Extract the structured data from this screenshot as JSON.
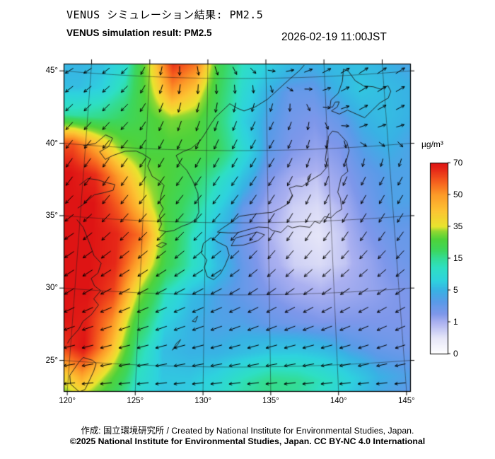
{
  "header": {
    "title_jp": "VENUS シミュレーション結果: PM2.5",
    "title_en": "VENUS simulation result: PM2.5",
    "datetime": "2026-02-19 11:00JST"
  },
  "colorbar": {
    "unit": "µg/m³",
    "tick_labels": [
      "70",
      "50",
      "35",
      "15",
      "5",
      "1",
      "0"
    ],
    "tick_values": [
      70,
      50,
      35,
      15,
      5,
      1,
      0
    ]
  },
  "map_axes": {
    "lat_labels": [
      "45°",
      "40°",
      "35°",
      "30°",
      "25°"
    ],
    "lat_values": [
      45,
      40,
      35,
      30,
      25
    ],
    "lon_labels": [
      "120°",
      "125°",
      "130°",
      "135°",
      "140°",
      "145°"
    ],
    "lon_values": [
      120,
      125,
      130,
      135,
      140,
      145
    ]
  },
  "footer": {
    "credit": "作成: 国立環境研究所 / Created by National Institute for Environmental Studies, Japan.",
    "license": "©2025 National Institute for Environmental Studies, Japan. CC BY-NC 4.0 International"
  },
  "chart_data": {
    "type": "heatmap",
    "title": "VENUS simulation result: PM2.5",
    "variable": "PM2.5",
    "unit": "µg/m³",
    "datetime": "2026-02-19 11:00JST",
    "extent": {
      "lon": [
        119.7,
        146.6
      ],
      "lat": [
        22.9,
        45.8
      ]
    },
    "colorbar_ticks": [
      0,
      1,
      5,
      15,
      35,
      50,
      70
    ],
    "colormap": [
      [
        0,
        "#ffffff"
      ],
      [
        0.5,
        "#e6e6f8"
      ],
      [
        1,
        "#aab0f0"
      ],
      [
        2,
        "#7e97ea"
      ],
      [
        3.5,
        "#5b9ae8"
      ],
      [
        5,
        "#38b2e4"
      ],
      [
        8,
        "#2ed2de"
      ],
      [
        12,
        "#2edfc4"
      ],
      [
        15,
        "#33dc96"
      ],
      [
        20,
        "#3cd65e"
      ],
      [
        27,
        "#4fd23a"
      ],
      [
        32,
        "#8fd832"
      ],
      [
        35,
        "#e8e42e"
      ],
      [
        42,
        "#fcc633"
      ],
      [
        50,
        "#fc9a28"
      ],
      [
        58,
        "#f6601e"
      ],
      [
        66,
        "#e62818"
      ],
      [
        70,
        "#de1414"
      ]
    ],
    "lon": [
      119,
      121,
      123,
      125,
      127,
      129,
      131,
      133,
      135,
      137,
      139,
      141,
      143,
      145,
      147
    ],
    "lat": [
      46,
      44,
      42,
      40,
      38,
      36,
      34,
      32,
      30,
      28,
      26,
      24,
      22
    ],
    "values": [
      [
        5,
        6,
        10,
        35,
        65,
        55,
        22,
        12,
        8,
        6,
        5,
        6,
        6,
        5,
        4
      ],
      [
        6,
        8,
        14,
        30,
        50,
        40,
        20,
        10,
        5,
        3,
        3,
        5,
        7,
        6,
        5
      ],
      [
        14,
        16,
        20,
        25,
        30,
        28,
        18,
        8,
        4,
        2.5,
        2,
        3,
        5,
        6,
        5
      ],
      [
        60,
        45,
        30,
        25,
        26,
        26,
        20,
        10,
        3.5,
        2,
        1.5,
        2,
        4,
        5,
        4
      ],
      [
        70,
        65,
        48,
        32,
        26,
        20,
        12,
        6,
        2,
        1,
        0.8,
        1.5,
        3,
        4,
        4
      ],
      [
        70,
        70,
        58,
        40,
        24,
        16,
        8,
        3,
        1.2,
        0.7,
        0.6,
        1,
        2.5,
        4,
        4
      ],
      [
        70,
        70,
        66,
        55,
        25,
        12,
        5,
        2.5,
        1,
        0.6,
        0.5,
        0.8,
        2,
        3,
        3
      ],
      [
        70,
        70,
        66,
        45,
        22,
        12,
        6,
        3,
        1.2,
        0.7,
        0.6,
        0.8,
        1.5,
        2.5,
        3
      ],
      [
        70,
        70,
        62,
        32,
        12,
        6,
        4,
        3,
        2,
        1.2,
        1,
        1.2,
        1.5,
        2,
        2.5
      ],
      [
        70,
        68,
        52,
        22,
        8,
        5,
        4,
        4,
        3,
        2.5,
        2,
        2,
        2,
        2,
        2
      ],
      [
        62,
        70,
        45,
        15,
        6,
        5,
        5,
        6,
        7,
        7,
        6,
        4,
        3,
        2.5,
        2
      ],
      [
        35,
        48,
        30,
        12,
        7,
        7,
        9,
        13,
        16,
        15,
        12,
        8,
        5,
        4,
        3
      ],
      [
        22,
        28,
        18,
        9,
        6,
        8,
        11,
        15,
        16,
        14,
        10,
        6,
        4,
        3,
        3
      ]
    ],
    "wind": {
      "lon": [
        119,
        123,
        127,
        131,
        135,
        139,
        143,
        147
      ],
      "lat": [
        46,
        42,
        38,
        34,
        30,
        26,
        22
      ],
      "u": [
        [
          -2,
          -1,
          0,
          1,
          1,
          2,
          3,
          3
        ],
        [
          -2,
          -2,
          -1,
          -1,
          -1,
          0,
          2,
          2
        ],
        [
          -2,
          -2,
          -2,
          -2,
          -2,
          -1,
          -1,
          -1
        ],
        [
          -3,
          -3,
          -3,
          -3,
          -2,
          -2,
          -2,
          -2
        ],
        [
          -3,
          -4,
          -4,
          -4,
          -3,
          -3,
          -3,
          -3
        ],
        [
          -4,
          -4,
          -4,
          -4,
          -4,
          -4,
          -3,
          -3
        ],
        [
          -4,
          -4,
          -4,
          -4,
          -4,
          -4,
          -4,
          -4
        ]
      ],
      "v": [
        [
          -1,
          -1,
          -2,
          -2,
          0,
          1,
          2,
          2
        ],
        [
          -2,
          -2,
          -3,
          -3,
          -2,
          -1,
          1,
          1
        ],
        [
          -3,
          -3,
          -3,
          -3,
          -3,
          -3,
          -2,
          -2
        ],
        [
          -2,
          -3,
          -3,
          -3,
          -3,
          -3,
          -3,
          -3
        ],
        [
          -2,
          -2,
          -2,
          -2,
          -2,
          -2,
          -2,
          -2
        ],
        [
          -1,
          -1,
          -1,
          -1,
          -1,
          -1,
          -1,
          -1
        ],
        [
          0,
          0,
          0,
          0,
          0,
          0,
          0,
          0
        ]
      ]
    }
  },
  "coastlines": [
    [
      [
        138.3,
        45.85
      ],
      [
        137.9,
        45.5
      ],
      [
        137.0,
        44.9
      ],
      [
        136.0,
        44.2
      ],
      [
        135.1,
        43.55
      ],
      [
        134.1,
        43.05
      ],
      [
        133.1,
        42.75
      ],
      [
        132.5,
        42.95
      ],
      [
        131.9,
        43.25
      ],
      [
        131.2,
        42.7
      ],
      [
        130.7,
        42.3
      ],
      [
        130.3,
        41.8
      ],
      [
        129.8,
        41.1
      ],
      [
        129.4,
        40.6
      ],
      [
        128.7,
        40.1
      ],
      [
        128.1,
        39.9
      ],
      [
        127.5,
        39.6
      ],
      [
        127.8,
        39.1
      ],
      [
        128.4,
        38.6
      ],
      [
        128.9,
        37.9
      ],
      [
        129.35,
        37.0
      ],
      [
        129.4,
        36.3
      ],
      [
        129.45,
        35.7
      ],
      [
        129.2,
        35.2
      ],
      [
        128.7,
        34.9
      ],
      [
        128.1,
        34.7
      ],
      [
        127.5,
        34.4
      ],
      [
        126.9,
        34.3
      ],
      [
        126.3,
        34.4
      ],
      [
        126.5,
        34.8
      ],
      [
        126.3,
        35.4
      ],
      [
        126.6,
        35.9
      ],
      [
        126.3,
        36.3
      ],
      [
        126.4,
        36.9
      ],
      [
        126.6,
        37.5
      ],
      [
        126.2,
        37.8
      ],
      [
        125.6,
        38.1
      ],
      [
        125.2,
        38.8
      ],
      [
        125.4,
        39.3
      ],
      [
        124.8,
        39.6
      ],
      [
        124.2,
        39.8
      ],
      [
        123.3,
        39.75
      ],
      [
        122.3,
        39.4
      ],
      [
        121.7,
        39.1
      ],
      [
        121.2,
        39.6
      ],
      [
        121.9,
        40.0
      ],
      [
        122.2,
        40.6
      ],
      [
        121.6,
        40.8
      ],
      [
        120.8,
        40.15
      ],
      [
        119.8,
        39.95
      ]
    ],
    [
      [
        119.75,
        37.2
      ],
      [
        120.4,
        37.7
      ],
      [
        121.2,
        37.65
      ],
      [
        121.9,
        37.5
      ],
      [
        122.6,
        37.4
      ],
      [
        122.5,
        37.0
      ],
      [
        121.8,
        36.8
      ],
      [
        121.0,
        36.6
      ],
      [
        120.4,
        36.1
      ],
      [
        120.2,
        35.9
      ],
      [
        119.75,
        35.6
      ]
    ],
    [
      [
        119.75,
        34.8
      ],
      [
        120.3,
        34.3
      ],
      [
        120.9,
        33.2
      ],
      [
        121.3,
        32.4
      ],
      [
        121.9,
        31.9
      ],
      [
        121.7,
        31.2
      ],
      [
        121.2,
        30.8
      ],
      [
        121.5,
        30.3
      ],
      [
        122.0,
        30.0
      ],
      [
        121.5,
        29.4
      ],
      [
        121.9,
        29.0
      ],
      [
        121.4,
        28.3
      ],
      [
        120.8,
        27.8
      ],
      [
        120.5,
        27.2
      ],
      [
        119.9,
        26.5
      ],
      [
        119.75,
        26.2
      ]
    ],
    [
      [
        121.0,
        25.3
      ],
      [
        121.7,
        25.15
      ],
      [
        122.0,
        24.95
      ],
      [
        121.85,
        24.4
      ],
      [
        121.6,
        23.8
      ],
      [
        121.3,
        23.1
      ],
      [
        120.9,
        22.9
      ],
      [
        120.2,
        23.4
      ],
      [
        120.1,
        24.0
      ],
      [
        120.7,
        24.95
      ],
      [
        121.0,
        25.3
      ]
    ],
    [
      [
        130.2,
        31.25
      ],
      [
        130.7,
        31.05
      ],
      [
        131.2,
        31.45
      ],
      [
        131.55,
        32.0
      ],
      [
        131.9,
        32.75
      ],
      [
        131.7,
        33.35
      ],
      [
        131.0,
        33.65
      ],
      [
        130.45,
        33.95
      ],
      [
        129.85,
        33.55
      ],
      [
        129.7,
        32.9
      ],
      [
        130.15,
        32.4
      ],
      [
        129.95,
        31.9
      ],
      [
        130.2,
        31.25
      ]
    ],
    [
      [
        132.05,
        33.4
      ],
      [
        133.0,
        33.45
      ],
      [
        134.15,
        33.75
      ],
      [
        134.7,
        34.15
      ],
      [
        134.1,
        34.35
      ],
      [
        133.1,
        34.1
      ],
      [
        132.4,
        33.95
      ],
      [
        132.05,
        33.4
      ]
    ],
    [
      [
        130.95,
        34.35
      ],
      [
        131.8,
        34.3
      ],
      [
        132.5,
        34.3
      ],
      [
        133.3,
        34.5
      ],
      [
        134.2,
        34.7
      ],
      [
        135.0,
        34.65
      ],
      [
        135.3,
        34.45
      ],
      [
        136.0,
        34.3
      ],
      [
        136.55,
        34.75
      ],
      [
        136.9,
        34.6
      ],
      [
        137.5,
        34.7
      ],
      [
        138.3,
        34.6
      ],
      [
        138.7,
        35.0
      ],
      [
        139.1,
        34.85
      ],
      [
        139.5,
        35.3
      ],
      [
        140.0,
        35.2
      ],
      [
        140.45,
        35.55
      ],
      [
        140.9,
        35.75
      ],
      [
        140.85,
        36.5
      ],
      [
        140.65,
        36.95
      ],
      [
        141.0,
        38.0
      ],
      [
        141.55,
        38.35
      ],
      [
        141.45,
        39.0
      ],
      [
        141.75,
        39.8
      ],
      [
        141.6,
        40.4
      ],
      [
        141.2,
        40.8
      ],
      [
        140.9,
        41.1
      ],
      [
        140.45,
        41.2
      ],
      [
        140.1,
        40.85
      ],
      [
        140.05,
        40.4
      ],
      [
        139.9,
        39.9
      ],
      [
        139.75,
        39.2
      ],
      [
        139.95,
        38.8
      ],
      [
        139.35,
        38.25
      ],
      [
        138.6,
        37.9
      ],
      [
        137.8,
        37.45
      ],
      [
        137.3,
        37.5
      ],
      [
        136.75,
        37.35
      ],
      [
        137.0,
        36.8
      ],
      [
        136.65,
        36.3
      ],
      [
        135.95,
        35.95
      ],
      [
        135.3,
        35.7
      ],
      [
        134.5,
        35.65
      ],
      [
        133.5,
        35.55
      ],
      [
        132.7,
        35.45
      ],
      [
        132.0,
        35.0
      ],
      [
        131.4,
        34.65
      ],
      [
        130.95,
        34.35
      ]
    ],
    [
      [
        140.45,
        42.6
      ],
      [
        141.1,
        42.35
      ],
      [
        141.8,
        42.6
      ],
      [
        142.5,
        42.3
      ],
      [
        143.2,
        42.0
      ],
      [
        143.9,
        42.5
      ],
      [
        144.55,
        42.95
      ],
      [
        145.3,
        43.25
      ],
      [
        145.55,
        43.7
      ],
      [
        145.35,
        44.1
      ],
      [
        144.7,
        43.9
      ],
      [
        144.1,
        44.1
      ],
      [
        143.3,
        44.2
      ],
      [
        142.6,
        44.6
      ],
      [
        142.05,
        45.3
      ],
      [
        141.65,
        45.45
      ],
      [
        141.5,
        44.6
      ],
      [
        141.1,
        43.8
      ],
      [
        140.45,
        43.35
      ],
      [
        140.35,
        42.9
      ],
      [
        140.55,
        42.85
      ],
      [
        140.8,
        43.2
      ],
      [
        141.15,
        43.2
      ],
      [
        140.95,
        42.85
      ],
      [
        140.45,
        42.6
      ]
    ],
    [
      [
        126.15,
        33.3
      ],
      [
        126.6,
        33.55
      ],
      [
        126.95,
        33.45
      ],
      [
        126.55,
        33.2
      ],
      [
        126.15,
        33.3
      ]
    ],
    [
      [
        127.65,
        26.1
      ],
      [
        128.0,
        26.45
      ],
      [
        128.25,
        26.85
      ],
      [
        127.95,
        26.6
      ],
      [
        127.65,
        26.1
      ]
    ],
    [
      [
        129.1,
        28.15
      ],
      [
        129.5,
        28.5
      ],
      [
        129.35,
        28.1
      ],
      [
        129.1,
        28.15
      ]
    ],
    [
      [
        138.25,
        37.85
      ],
      [
        138.55,
        38.3
      ],
      [
        138.3,
        38.1
      ],
      [
        138.25,
        37.85
      ]
    ]
  ]
}
